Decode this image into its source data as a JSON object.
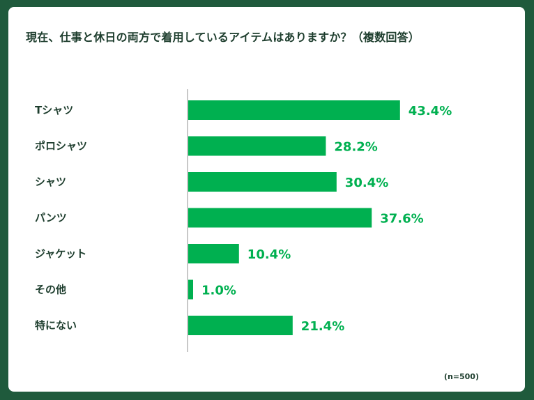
{
  "title": "現在、仕事と休日の両方で着用しているアイテムはありますか？（複数回答）",
  "note": "(n=500)",
  "colors": {
    "frame": "#1f5a3c",
    "bar": "#00b050",
    "value_text": "#00b050",
    "axis": "#c8c8c8",
    "label_text": "#1d3d2d"
  },
  "chart_data": {
    "type": "bar",
    "orientation": "horizontal",
    "unit": "%",
    "categories": [
      "Tシャツ",
      "ポロシャツ",
      "シャツ",
      "パンツ",
      "ジャケット",
      "その他",
      "特にない"
    ],
    "values": [
      43.4,
      28.2,
      30.4,
      37.6,
      10.4,
      1.0,
      21.4
    ],
    "value_labels": [
      "43.4%",
      "28.2%",
      "30.4%",
      "37.6%",
      "10.4%",
      "1.0%",
      "21.4%"
    ],
    "xlim": [
      0,
      100
    ],
    "grid": false,
    "legend": "none"
  }
}
